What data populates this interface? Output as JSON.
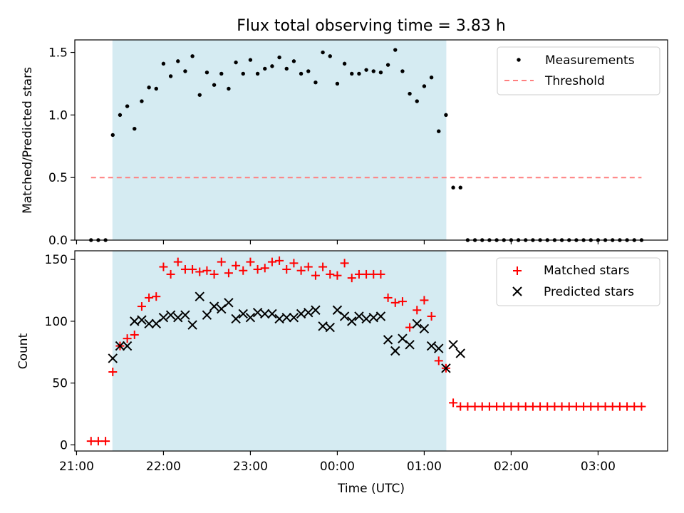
{
  "title": "Flux total observing time = 3.83 h",
  "colors": {
    "shade": "#add8e6",
    "measurements": "#000000",
    "threshold": "#ff7f7f",
    "matched": "#ff0000",
    "predicted": "#000000"
  },
  "chart_data": [
    {
      "type": "scatter",
      "name": "ratio-panel",
      "ylabel": "Matched/Predicted stars",
      "ylim": [
        0,
        1.6
      ],
      "yticks": [
        {
          "v": 0,
          "label": "0.0"
        },
        {
          "v": 0.5,
          "label": "0.5"
        },
        {
          "v": 1.0,
          "label": "1.0"
        },
        {
          "v": 1.5,
          "label": "1.5"
        }
      ],
      "xlim": [
        20.98,
        27.8
      ],
      "shaded_interval": [
        "21:25",
        "01:15"
      ],
      "legend_position": "upper right",
      "legend": [
        "Measurements",
        "Threshold"
      ],
      "threshold": {
        "value": 0.5,
        "x_range": [
          "21:10",
          "03:30"
        ],
        "style": "dashed"
      },
      "series": [
        {
          "name": "Measurements",
          "x": [
            "21:10",
            "21:15",
            "21:20",
            "21:25",
            "21:30",
            "21:35",
            "21:40",
            "21:45",
            "21:50",
            "21:55",
            "22:00",
            "22:05",
            "22:10",
            "22:15",
            "22:20",
            "22:25",
            "22:30",
            "22:35",
            "22:40",
            "22:45",
            "22:50",
            "22:55",
            "23:00",
            "23:05",
            "23:10",
            "23:15",
            "23:20",
            "23:25",
            "23:30",
            "23:35",
            "23:40",
            "23:45",
            "23:50",
            "23:55",
            "00:00",
            "00:05",
            "00:10",
            "00:15",
            "00:20",
            "00:25",
            "00:30",
            "00:35",
            "00:40",
            "00:45",
            "00:50",
            "00:55",
            "01:00",
            "01:05",
            "01:10",
            "01:15",
            "01:20",
            "01:25",
            "01:30",
            "01:35",
            "01:40",
            "01:45",
            "01:50",
            "01:55",
            "02:00",
            "02:05",
            "02:10",
            "02:15",
            "02:20",
            "02:25",
            "02:30",
            "02:35",
            "02:40",
            "02:45",
            "02:50",
            "02:55",
            "03:00",
            "03:05",
            "03:10",
            "03:15",
            "03:20",
            "03:25",
            "03:30"
          ],
          "y": [
            0,
            0,
            0,
            0.84,
            1.0,
            1.07,
            0.89,
            1.11,
            1.22,
            1.21,
            1.41,
            1.31,
            1.43,
            1.35,
            1.47,
            1.16,
            1.34,
            1.24,
            1.33,
            1.21,
            1.42,
            1.33,
            1.44,
            1.33,
            1.37,
            1.39,
            1.46,
            1.37,
            1.43,
            1.33,
            1.35,
            1.26,
            1.5,
            1.47,
            1.25,
            1.41,
            1.33,
            1.33,
            1.36,
            1.35,
            1.34,
            1.4,
            1.52,
            1.35,
            1.17,
            1.11,
            1.23,
            1.3,
            0.87,
            1.0,
            0.42,
            0.42,
            0,
            0,
            0,
            0,
            0,
            0,
            0,
            0,
            0,
            0,
            0,
            0,
            0,
            0,
            0,
            0,
            0,
            0,
            0,
            0,
            0,
            0,
            0,
            0,
            0
          ]
        }
      ]
    },
    {
      "type": "scatter",
      "name": "count-panel",
      "ylabel": "Count",
      "xlabel": "Time (UTC)",
      "ylim": [
        -5,
        157
      ],
      "yticks": [
        {
          "v": 0,
          "label": "0"
        },
        {
          "v": 50,
          "label": "50"
        },
        {
          "v": 100,
          "label": "100"
        },
        {
          "v": 150,
          "label": "150"
        }
      ],
      "xlim": [
        20.98,
        27.8
      ],
      "xticks": [
        {
          "v": 21,
          "label": "21:00"
        },
        {
          "v": 22,
          "label": "22:00"
        },
        {
          "v": 23,
          "label": "23:00"
        },
        {
          "v": 24,
          "label": "00:00"
        },
        {
          "v": 25,
          "label": "01:00"
        },
        {
          "v": 26,
          "label": "02:00"
        },
        {
          "v": 27,
          "label": "03:00"
        }
      ],
      "shaded_interval": [
        "21:25",
        "01:15"
      ],
      "legend_position": "upper right",
      "legend": [
        "Matched stars",
        "Predicted stars"
      ],
      "series": [
        {
          "name": "Matched stars",
          "marker": "+",
          "x": [
            "21:10",
            "21:15",
            "21:20",
            "21:25",
            "21:30",
            "21:35",
            "21:40",
            "21:45",
            "21:50",
            "21:55",
            "22:00",
            "22:05",
            "22:10",
            "22:15",
            "22:20",
            "22:25",
            "22:30",
            "22:35",
            "22:40",
            "22:45",
            "22:50",
            "22:55",
            "23:00",
            "23:05",
            "23:10",
            "23:15",
            "23:20",
            "23:25",
            "23:30",
            "23:35",
            "23:40",
            "23:45",
            "23:50",
            "23:55",
            "00:00",
            "00:05",
            "00:10",
            "00:15",
            "00:20",
            "00:25",
            "00:30",
            "00:35",
            "00:40",
            "00:45",
            "00:50",
            "00:55",
            "01:00",
            "01:05",
            "01:10",
            "01:15",
            "01:20",
            "01:25",
            "01:30",
            "01:35",
            "01:40",
            "01:45",
            "01:50",
            "01:55",
            "02:00",
            "02:05",
            "02:10",
            "02:15",
            "02:20",
            "02:25",
            "02:30",
            "02:35",
            "02:40",
            "02:45",
            "02:50",
            "02:55",
            "03:00",
            "03:05",
            "03:10",
            "03:15",
            "03:20",
            "03:25",
            "03:30"
          ],
          "y": [
            3,
            3,
            3,
            59,
            80,
            86,
            89,
            112,
            119,
            120,
            144,
            138,
            148,
            142,
            142,
            140,
            141,
            138,
            148,
            139,
            145,
            141,
            148,
            142,
            143,
            148,
            149,
            142,
            147,
            141,
            144,
            137,
            144,
            138,
            137,
            147,
            135,
            138,
            138,
            138,
            138,
            119,
            115,
            116,
            95,
            109,
            117,
            104,
            68,
            62,
            34,
            31,
            31,
            31,
            31,
            31,
            31,
            31,
            31,
            31,
            31,
            31,
            31,
            31,
            31,
            31,
            31,
            31,
            31,
            31,
            31,
            31,
            31,
            31,
            31,
            31,
            31
          ]
        },
        {
          "name": "Predicted stars",
          "marker": "x",
          "x": [
            "21:25",
            "21:30",
            "21:35",
            "21:40",
            "21:45",
            "21:50",
            "21:55",
            "22:00",
            "22:05",
            "22:10",
            "22:15",
            "22:20",
            "22:25",
            "22:30",
            "22:35",
            "22:40",
            "22:45",
            "22:50",
            "22:55",
            "23:00",
            "23:05",
            "23:10",
            "23:15",
            "23:20",
            "23:25",
            "23:30",
            "23:35",
            "23:40",
            "23:45",
            "23:50",
            "23:55",
            "00:00",
            "00:05",
            "00:10",
            "00:15",
            "00:20",
            "00:25",
            "00:30",
            "00:35",
            "00:40",
            "00:45",
            "00:50",
            "00:55",
            "01:00",
            "01:05",
            "01:10",
            "01:15",
            "01:20",
            "01:25"
          ],
          "y": [
            70,
            80,
            80,
            100,
            101,
            98,
            98,
            103,
            105,
            103,
            105,
            97,
            120,
            105,
            112,
            110,
            115,
            102,
            106,
            103,
            107,
            106,
            106,
            102,
            103,
            103,
            106,
            107,
            109,
            96,
            95,
            109,
            104,
            100,
            104,
            102,
            103,
            104,
            85,
            76,
            86,
            81,
            98,
            94,
            80,
            78,
            62,
            81,
            74
          ]
        }
      ]
    }
  ]
}
